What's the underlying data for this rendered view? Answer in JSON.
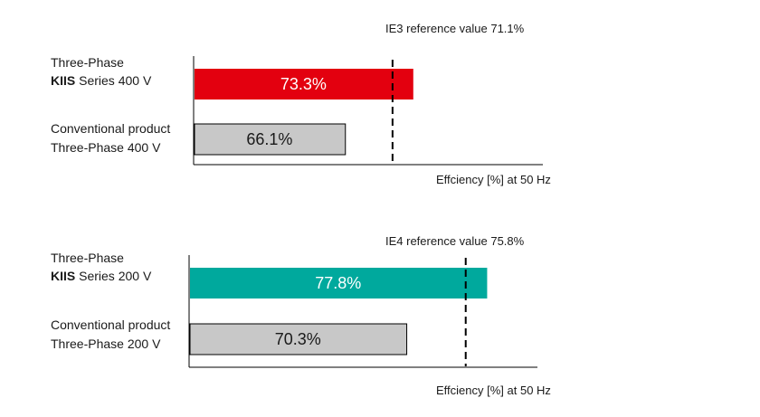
{
  "chart_data": [
    {
      "type": "bar",
      "orientation": "horizontal",
      "categories": [
        {
          "line1": "Three-Phase",
          "line2_bold": "KIIS",
          "line2_rest": " Series 400 V"
        },
        {
          "line1": "Conventional product",
          "line2_bold": "",
          "line2_rest": "Three-Phase 400 V"
        }
      ],
      "values": [
        73.3,
        66.1
      ],
      "value_labels": [
        "73.3%",
        "66.1%"
      ],
      "bar_colors": [
        "#e3000f",
        "#c8c8c8"
      ],
      "value_label_colors": [
        "#ffffff",
        "#1a1a1a"
      ],
      "reference": {
        "label": "IE3 reference value 71.1%",
        "value": 71.1
      },
      "xlabel": "Effciency [%] at 50 Hz",
      "xlim": [
        50,
        80
      ]
    },
    {
      "type": "bar",
      "orientation": "horizontal",
      "categories": [
        {
          "line1": "Three-Phase",
          "line2_bold": "KIIS",
          "line2_rest": " Series 200 V"
        },
        {
          "line1": "Conventional product",
          "line2_bold": "",
          "line2_rest": "Three-Phase 200 V"
        }
      ],
      "values": [
        77.8,
        70.3
      ],
      "value_labels": [
        "77.8%",
        "70.3%"
      ],
      "bar_colors": [
        "#00a99d",
        "#c8c8c8"
      ],
      "value_label_colors": [
        "#ffffff",
        "#1a1a1a"
      ],
      "reference": {
        "label": "IE4 reference value 75.8%",
        "value": 75.8
      },
      "xlabel": "Effciency [%] at 50 Hz",
      "xlim": [
        50,
        80
      ]
    }
  ]
}
